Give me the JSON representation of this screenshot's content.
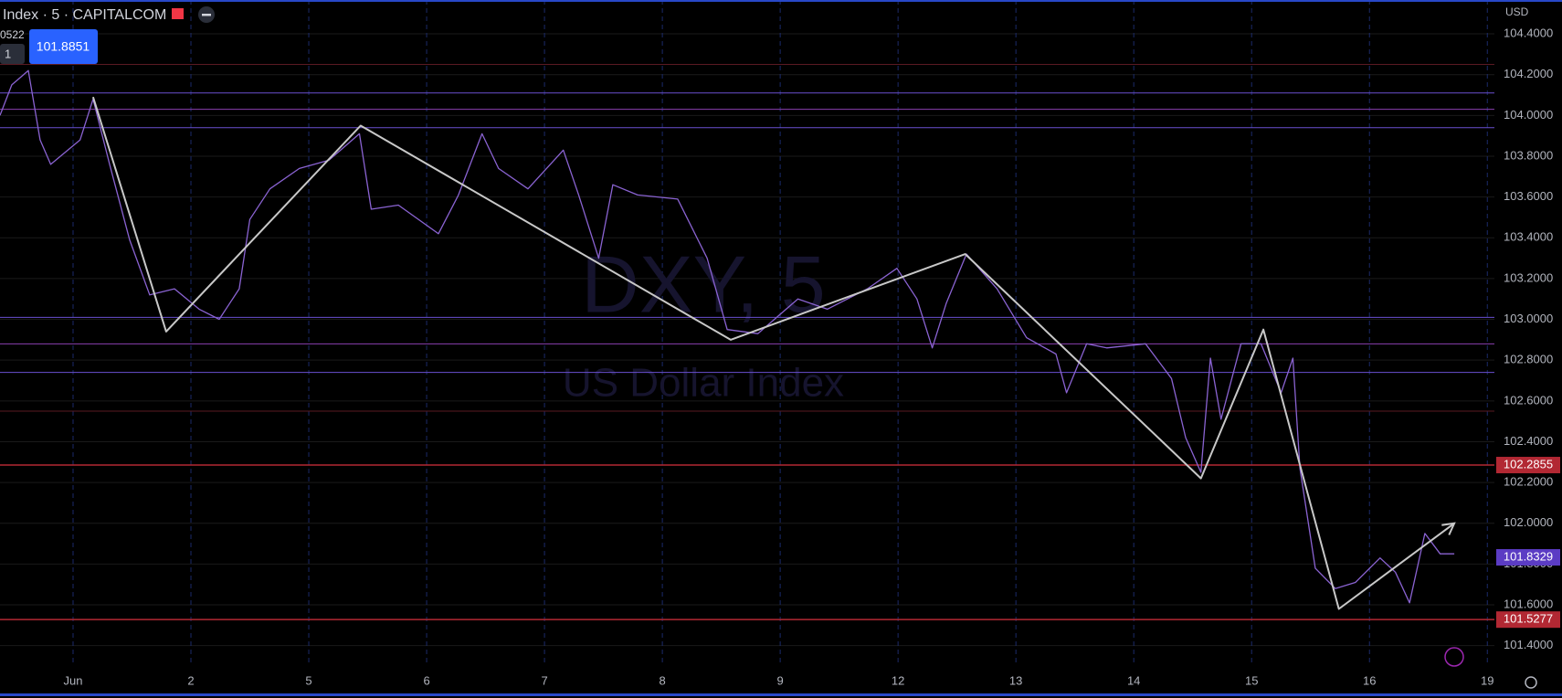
{
  "header": {
    "symbol": "Index · 5 · CAPITALCOM",
    "price_tag": "101.8851",
    "left_values": [
      "0522",
      "1"
    ],
    "currency": "USD"
  },
  "watermark": {
    "symbol": "DXY, 5",
    "name": "US Dollar Index"
  },
  "chart_data": {
    "type": "line",
    "xlim": [
      -0.62,
      12.06
    ],
    "ylim": [
      101.3,
      104.566
    ],
    "xticks": [
      {
        "value": 0,
        "label": "Jun"
      },
      {
        "value": 1,
        "label": "2"
      },
      {
        "value": 2,
        "label": "5"
      },
      {
        "value": 3,
        "label": "6"
      },
      {
        "value": 4,
        "label": "7"
      },
      {
        "value": 5,
        "label": "8"
      },
      {
        "value": 6,
        "label": "9"
      },
      {
        "value": 7,
        "label": "12"
      },
      {
        "value": 8,
        "label": "13"
      },
      {
        "value": 9,
        "label": "14"
      },
      {
        "value": 10,
        "label": "15"
      },
      {
        "value": 11,
        "label": "16"
      },
      {
        "value": 12,
        "label": "19"
      }
    ],
    "yticks": [
      {
        "value": 101.4,
        "label": "101.4000"
      },
      {
        "value": 101.6,
        "label": "101.6000"
      },
      {
        "value": 101.8,
        "label": "101.8000"
      },
      {
        "value": 102.0,
        "label": "102.0000"
      },
      {
        "value": 102.2,
        "label": "102.2000"
      },
      {
        "value": 102.4,
        "label": "102.4000"
      },
      {
        "value": 102.6,
        "label": "102.6000"
      },
      {
        "value": 102.8,
        "label": "102.8000"
      },
      {
        "value": 103.0,
        "label": "103.0000"
      },
      {
        "value": 103.2,
        "label": "103.2000"
      },
      {
        "value": 103.4,
        "label": "103.4000"
      },
      {
        "value": 103.6,
        "label": "103.6000"
      },
      {
        "value": 103.8,
        "label": "103.8000"
      },
      {
        "value": 104.0,
        "label": "104.0000"
      },
      {
        "value": 104.2,
        "label": "104.2000"
      },
      {
        "value": 104.4,
        "label": "104.4000"
      }
    ],
    "grid": true,
    "series": [
      {
        "color": "#8a63d2",
        "x": [
          -0.62,
          -0.52,
          -0.38,
          -0.28,
          -0.19,
          0.06,
          0.17,
          0.31,
          0.48,
          0.65,
          0.86,
          1.07,
          1.24,
          1.41,
          1.5,
          1.67,
          1.92,
          2.17,
          2.43,
          2.53,
          2.76,
          3.1,
          3.27,
          3.47,
          3.61,
          3.86,
          4.16,
          4.29,
          4.46,
          4.58,
          4.79,
          5.13,
          5.38,
          5.55,
          5.81,
          6.15,
          6.4,
          6.74,
          6.99,
          7.16,
          7.29,
          7.41,
          7.58,
          7.84,
          8.09,
          8.34,
          8.43,
          8.6,
          8.77,
          9.1,
          9.32,
          9.44,
          9.57,
          9.65,
          9.74,
          9.91,
          10.08,
          10.25,
          10.35,
          10.41,
          10.54,
          10.71,
          10.88,
          11.09,
          11.22,
          11.34,
          11.47,
          11.6,
          11.72
        ],
        "values": [
          104.0,
          104.15,
          104.22,
          103.88,
          103.76,
          103.88,
          104.08,
          103.76,
          103.39,
          103.12,
          103.15,
          103.05,
          103.0,
          103.15,
          103.49,
          103.64,
          103.74,
          103.78,
          103.91,
          103.54,
          103.56,
          103.42,
          103.61,
          103.91,
          103.74,
          103.64,
          103.83,
          103.61,
          103.3,
          103.66,
          103.61,
          103.59,
          103.3,
          102.95,
          102.93,
          103.1,
          103.05,
          103.15,
          103.25,
          103.1,
          102.86,
          103.08,
          103.32,
          103.15,
          102.91,
          102.83,
          102.64,
          102.88,
          102.86,
          102.88,
          102.71,
          102.42,
          102.25,
          102.81,
          102.51,
          102.88,
          102.88,
          102.64,
          102.81,
          102.27,
          101.78,
          101.68,
          101.71,
          101.83,
          101.76,
          101.61,
          101.95,
          101.85,
          101.85
        ]
      },
      {
        "color": "#c8c8c8",
        "x": [
          0.17,
          0.79,
          2.44,
          5.58,
          7.57,
          9.57,
          10.1,
          10.74,
          11.72
        ],
        "values": [
          104.09,
          102.94,
          103.95,
          102.9,
          103.32,
          102.22,
          102.95,
          101.58,
          102.0
        ]
      }
    ],
    "levels": [
      {
        "value": 104.25,
        "color": "#5a1a22"
      },
      {
        "value": 104.11,
        "color": "#6a4fd0"
      },
      {
        "value": 104.03,
        "color": "#8a3fb0"
      },
      {
        "value": 103.94,
        "color": "#6a4fd0"
      },
      {
        "value": 103.01,
        "color": "#6a4fd0"
      },
      {
        "value": 102.88,
        "color": "#8a3fb0"
      },
      {
        "value": 102.74,
        "color": "#6a4fd0"
      },
      {
        "value": 102.55,
        "color": "#5a1a22"
      },
      {
        "value": 102.2855,
        "color": "#b22833",
        "tag": true
      },
      {
        "value": 101.5277,
        "color": "#b22833",
        "tag": true
      }
    ],
    "last_price": {
      "value": 101.8329,
      "color": "#5b3cc4"
    }
  }
}
